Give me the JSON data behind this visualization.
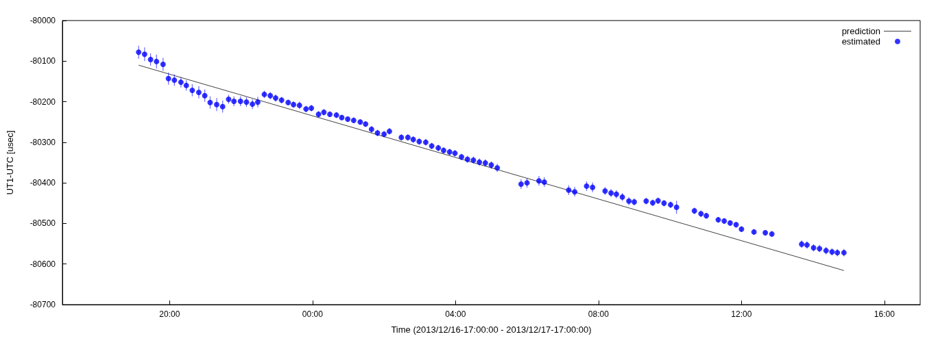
{
  "chart_data": {
    "type": "scatter",
    "xlabel": "Time (2013/12/16-17:00:00 - 2013/12/17-17:00:00)",
    "ylabel": "UT1-UTC [usec]",
    "xlim": [
      "2013-12-16T17:00",
      "2013-12-17T17:00"
    ],
    "ylim": [
      -80700,
      -80000
    ],
    "xticks": [
      {
        "value": "2013-12-16T20:00",
        "label": "20:00"
      },
      {
        "value": "2013-12-17T00:00",
        "label": "00:00"
      },
      {
        "value": "2013-12-17T04:00",
        "label": "04:00"
      },
      {
        "value": "2013-12-17T08:00",
        "label": "08:00"
      },
      {
        "value": "2013-12-17T12:00",
        "label": "12:00"
      },
      {
        "value": "2013-12-17T16:00",
        "label": "16:00"
      }
    ],
    "yticks": [
      -80700,
      -80600,
      -80500,
      -80400,
      -80300,
      -80200,
      -80100,
      -80000
    ],
    "grid": false,
    "legend": "top right",
    "series": [
      {
        "name": "prediction",
        "type": "line",
        "color": "#404040",
        "marker": "none",
        "x": [
          "2013-12-16T19:08",
          "2013-12-17T14:52"
        ],
        "values": [
          -80110,
          -80616
        ]
      },
      {
        "name": "estimated",
        "color": "#0000ff",
        "marker": "circle",
        "x": [
          "2013-12-16T19:08",
          "2013-12-16T19:18",
          "2013-12-16T19:28",
          "2013-12-16T19:38",
          "2013-12-16T19:49",
          "2013-12-16T19:58",
          "2013-12-16T20:08",
          "2013-12-16T20:19",
          "2013-12-16T20:28",
          "2013-12-16T20:38",
          "2013-12-16T20:49",
          "2013-12-16T20:59",
          "2013-12-16T21:08",
          "2013-12-16T21:19",
          "2013-12-16T21:29",
          "2013-12-16T21:39",
          "2013-12-16T21:48",
          "2013-12-16T21:59",
          "2013-12-16T22:09",
          "2013-12-16T22:19",
          "2013-12-16T22:28",
          "2013-12-16T22:39",
          "2013-12-16T22:49",
          "2013-12-16T22:58",
          "2013-12-16T23:08",
          "2013-12-16T23:19",
          "2013-12-16T23:28",
          "2013-12-16T23:38",
          "2013-12-16T23:49",
          "2013-12-16T23:58",
          "2013-12-17T00:10",
          "2013-12-17T00:19",
          "2013-12-17T00:29",
          "2013-12-17T00:40",
          "2013-12-17T00:49",
          "2013-12-17T00:59",
          "2013-12-17T01:09",
          "2013-12-17T01:20",
          "2013-12-17T01:29",
          "2013-12-17T01:39",
          "2013-12-17T01:49",
          "2013-12-17T02:00",
          "2013-12-17T02:09",
          "2013-12-17T02:29",
          "2013-12-17T02:40",
          "2013-12-17T02:49",
          "2013-12-17T02:59",
          "2013-12-17T03:10",
          "2013-12-17T03:20",
          "2013-12-17T03:31",
          "2013-12-17T03:40",
          "2013-12-17T03:50",
          "2013-12-17T03:59",
          "2013-12-17T04:10",
          "2013-12-17T04:20",
          "2013-12-17T04:30",
          "2013-12-17T04:40",
          "2013-12-17T04:50",
          "2013-12-17T05:00",
          "2013-12-17T05:10",
          "2013-12-17T05:50",
          "2013-12-17T06:00",
          "2013-12-17T06:20",
          "2013-12-17T06:29",
          "2013-12-17T07:10",
          "2013-12-17T07:20",
          "2013-12-17T07:40",
          "2013-12-17T07:50",
          "2013-12-17T08:11",
          "2013-12-17T08:21",
          "2013-12-17T08:30",
          "2013-12-17T08:40",
          "2013-12-17T08:51",
          "2013-12-17T09:00",
          "2013-12-17T09:20",
          "2013-12-17T09:31",
          "2013-12-17T09:40",
          "2013-12-17T09:50",
          "2013-12-17T10:01",
          "2013-12-17T10:11",
          "2013-12-17T10:41",
          "2013-12-17T10:52",
          "2013-12-17T11:01",
          "2013-12-17T11:21",
          "2013-12-17T11:31",
          "2013-12-17T11:41",
          "2013-12-17T11:51",
          "2013-12-17T12:00",
          "2013-12-17T12:21",
          "2013-12-17T12:40",
          "2013-12-17T12:51",
          "2013-12-17T13:41",
          "2013-12-17T13:50",
          "2013-12-17T14:01",
          "2013-12-17T14:11",
          "2013-12-17T14:22",
          "2013-12-17T14:32",
          "2013-12-17T14:41",
          "2013-12-17T14:52"
        ],
        "values": [
          -80078,
          -80083,
          -80096,
          -80101,
          -80108,
          -80143,
          -80147,
          -80152,
          -80160,
          -80172,
          -80177,
          -80185,
          -80202,
          -80207,
          -80212,
          -80194,
          -80199,
          -80199,
          -80201,
          -80206,
          -80201,
          -80182,
          -80185,
          -80191,
          -80196,
          -80202,
          -80207,
          -80209,
          -80218,
          -80216,
          -80231,
          -80226,
          -80231,
          -80233,
          -80239,
          -80243,
          -80246,
          -80250,
          -80255,
          -80268,
          -80277,
          -80280,
          -80273,
          -80288,
          -80288,
          -80293,
          -80298,
          -80300,
          -80309,
          -80314,
          -80320,
          -80324,
          -80327,
          -80336,
          -80342,
          -80344,
          -80349,
          -80351,
          -80356,
          -80363,
          -80403,
          -80400,
          -80395,
          -80398,
          -80418,
          -80422,
          -80408,
          -80411,
          -80420,
          -80425,
          -80428,
          -80435,
          -80445,
          -80447,
          -80445,
          -80449,
          -80444,
          -80450,
          -80454,
          -80460,
          -80469,
          -80476,
          -80481,
          -80491,
          -80494,
          -80499,
          -80503,
          -80514,
          -80521,
          -80523,
          -80526,
          -80551,
          -80553,
          -80560,
          -80562,
          -80567,
          -80570,
          -80572,
          -80572
        ],
        "errors": [
          16,
          17,
          15,
          17,
          16,
          15,
          14,
          13,
          13,
          15,
          15,
          15,
          15,
          16,
          15,
          11,
          12,
          12,
          12,
          12,
          13,
          9,
          9,
          9,
          8,
          7,
          8,
          9,
          8,
          8,
          8,
          8,
          7,
          7,
          7,
          7,
          7,
          7,
          7,
          8,
          8,
          8,
          8,
          8,
          8,
          8,
          8,
          8,
          8,
          8,
          8,
          8,
          8,
          8,
          9,
          9,
          9,
          9,
          9,
          10,
          12,
          12,
          12,
          12,
          12,
          12,
          12,
          12,
          10,
          10,
          10,
          10,
          10,
          9,
          8,
          8,
          8,
          8,
          8,
          16,
          8,
          8,
          7,
          7,
          7,
          7,
          7,
          7,
          7,
          7,
          7,
          9,
          9,
          9,
          9,
          9,
          9,
          9,
          9
        ]
      }
    ]
  }
}
